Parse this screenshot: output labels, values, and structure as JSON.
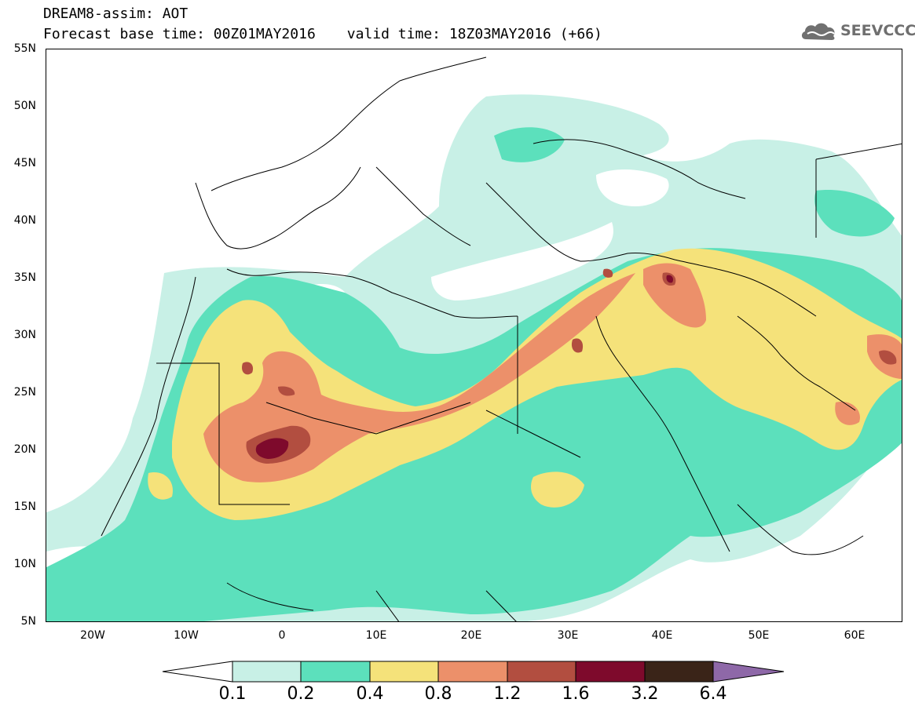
{
  "header": {
    "title": "DREAM8-assim: AOT",
    "base_time_label": "Forecast base time: 00Z01MAY2016",
    "valid_time_label": "valid time: 18Z03MAY2016 (+66)"
  },
  "brand": {
    "name": "SEEVCCC",
    "color": "#707070"
  },
  "map": {
    "variable": "AOT",
    "lat_range": [
      5,
      55
    ],
    "lon_range": [
      -25,
      65
    ],
    "lat_labels": [
      "55N",
      "50N",
      "45N",
      "40N",
      "35N",
      "30N",
      "25N",
      "20N",
      "15N",
      "10N",
      "5N"
    ],
    "lon_labels": [
      "20W",
      "10W",
      "0",
      "10E",
      "20E",
      "30E",
      "40E",
      "50E",
      "60E"
    ]
  },
  "colorbar": {
    "levels": [
      "0.1",
      "0.2",
      "0.4",
      "0.8",
      "1.2",
      "1.6",
      "3.2",
      "6.4"
    ],
    "colors": [
      "#ffffff",
      "#c8f0e6",
      "#5ce0bc",
      "#f5e27a",
      "#ec906a",
      "#b24e40",
      "#7e0a2c",
      "#3a2418",
      "#8e68a8"
    ]
  }
}
